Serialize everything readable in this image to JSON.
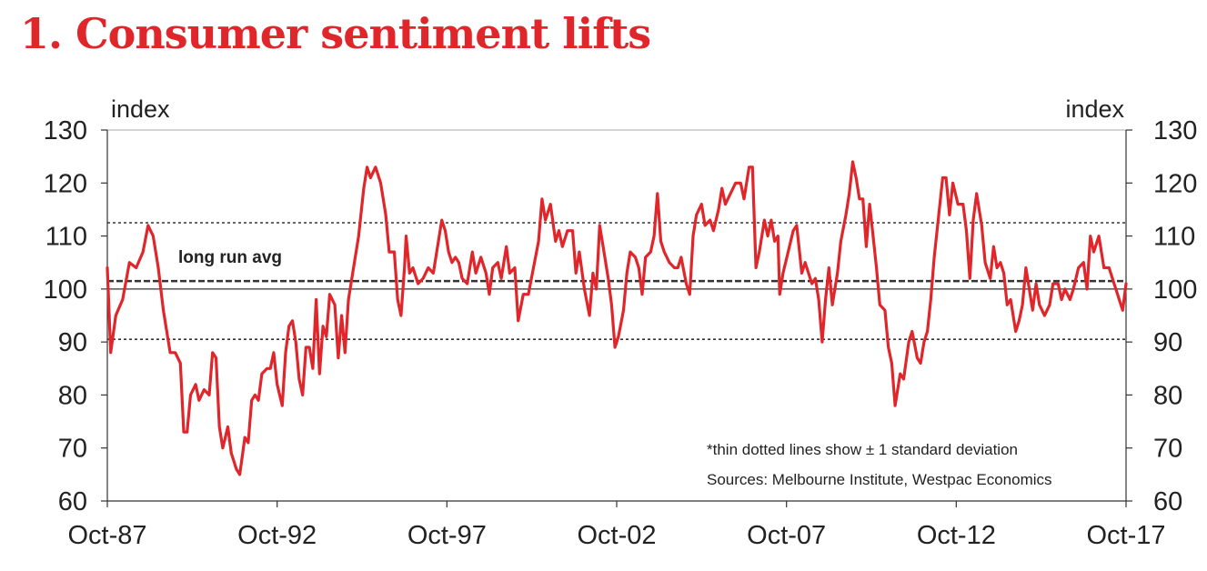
{
  "colors": {
    "title": "#e0262b",
    "series": "#e0262b",
    "axis": "#333333",
    "text": "#222222"
  },
  "chart_data": {
    "type": "line",
    "title": "1. Consumer sentiment lifts",
    "ylabel_left": "index",
    "ylabel_right": "index",
    "ylim": [
      60,
      130
    ],
    "yticks": [
      60,
      70,
      80,
      90,
      100,
      110,
      120,
      130
    ],
    "xlim": [
      1987.75,
      2017.75
    ],
    "xticks": [
      {
        "label": "Oct-87",
        "t": 1987.75
      },
      {
        "label": "Oct-92",
        "t": 1992.75
      },
      {
        "label": "Oct-97",
        "t": 1997.75
      },
      {
        "label": "Oct-02",
        "t": 2002.75
      },
      {
        "label": "Oct-07",
        "t": 2007.75
      },
      {
        "label": "Oct-12",
        "t": 2012.75
      },
      {
        "label": "Oct-17",
        "t": 2017.75
      }
    ],
    "reference_lines": [
      {
        "name": "long run avg",
        "value": 101.5,
        "style": "dashed-thick"
      },
      {
        "name": "+1 standard deviation",
        "value": 112.5,
        "style": "dotted"
      },
      {
        "name": "-1 standard deviation",
        "value": 90.5,
        "style": "dotted"
      },
      {
        "name": "100",
        "value": 100,
        "style": "solid-thin"
      }
    ],
    "annotations": {
      "long_run_avg_label": "long run avg",
      "note_sd": "*thin dotted lines show ± 1 standard deviation",
      "sources": "Sources: Melbourne Institute, Westpac Economics"
    },
    "series": [
      {
        "name": "Consumer sentiment index",
        "points": [
          [
            1987.75,
            104
          ],
          [
            1987.85,
            88
          ],
          [
            1988.0,
            95
          ],
          [
            1988.2,
            98
          ],
          [
            1988.4,
            105
          ],
          [
            1988.6,
            104
          ],
          [
            1988.8,
            107
          ],
          [
            1988.95,
            112
          ],
          [
            1989.1,
            110
          ],
          [
            1989.25,
            104
          ],
          [
            1989.4,
            96
          ],
          [
            1989.6,
            88
          ],
          [
            1989.75,
            88
          ],
          [
            1989.9,
            86
          ],
          [
            1990.0,
            73
          ],
          [
            1990.1,
            73
          ],
          [
            1990.2,
            80
          ],
          [
            1990.35,
            82
          ],
          [
            1990.45,
            79
          ],
          [
            1990.6,
            81
          ],
          [
            1990.75,
            80
          ],
          [
            1990.85,
            88
          ],
          [
            1990.95,
            87
          ],
          [
            1991.05,
            74
          ],
          [
            1991.15,
            70
          ],
          [
            1991.3,
            74
          ],
          [
            1991.4,
            69
          ],
          [
            1991.55,
            66
          ],
          [
            1991.65,
            65
          ],
          [
            1991.8,
            72
          ],
          [
            1991.9,
            71
          ],
          [
            1992.0,
            79
          ],
          [
            1992.1,
            80
          ],
          [
            1992.2,
            79
          ],
          [
            1992.3,
            84
          ],
          [
            1992.45,
            85
          ],
          [
            1992.55,
            85
          ],
          [
            1992.65,
            88
          ],
          [
            1992.75,
            82
          ],
          [
            1992.9,
            78
          ],
          [
            1993.0,
            88
          ],
          [
            1993.1,
            93
          ],
          [
            1993.2,
            94
          ],
          [
            1993.3,
            90
          ],
          [
            1993.4,
            83
          ],
          [
            1993.5,
            80
          ],
          [
            1993.6,
            89
          ],
          [
            1993.7,
            89
          ],
          [
            1993.8,
            85
          ],
          [
            1993.9,
            98
          ],
          [
            1994.0,
            84
          ],
          [
            1994.1,
            93
          ],
          [
            1994.2,
            91
          ],
          [
            1994.3,
            99
          ],
          [
            1994.45,
            97
          ],
          [
            1994.55,
            87
          ],
          [
            1994.65,
            95
          ],
          [
            1994.75,
            88
          ],
          [
            1994.85,
            98
          ],
          [
            1995.0,
            104
          ],
          [
            1995.15,
            110
          ],
          [
            1995.3,
            119
          ],
          [
            1995.4,
            123
          ],
          [
            1995.5,
            121
          ],
          [
            1995.65,
            123
          ],
          [
            1995.8,
            120
          ],
          [
            1995.95,
            114
          ],
          [
            1996.05,
            107
          ],
          [
            1996.2,
            107
          ],
          [
            1996.3,
            98
          ],
          [
            1996.4,
            95
          ],
          [
            1996.5,
            104
          ],
          [
            1996.55,
            110
          ],
          [
            1996.65,
            103
          ],
          [
            1996.75,
            104
          ],
          [
            1996.9,
            101
          ],
          [
            1997.05,
            102
          ],
          [
            1997.2,
            104
          ],
          [
            1997.35,
            103
          ],
          [
            1997.5,
            109
          ],
          [
            1997.6,
            113
          ],
          [
            1997.7,
            111
          ],
          [
            1997.8,
            107
          ],
          [
            1997.9,
            105
          ],
          [
            1998.0,
            106
          ],
          [
            1998.1,
            105
          ],
          [
            1998.2,
            102
          ],
          [
            1998.35,
            101
          ],
          [
            1998.5,
            107
          ],
          [
            1998.6,
            103
          ],
          [
            1998.75,
            106
          ],
          [
            1998.9,
            103
          ],
          [
            1999.0,
            99
          ],
          [
            1999.1,
            104
          ],
          [
            1999.25,
            105
          ],
          [
            1999.35,
            102
          ],
          [
            1999.5,
            108
          ],
          [
            1999.6,
            103
          ],
          [
            1999.75,
            104
          ],
          [
            1999.85,
            94
          ],
          [
            2000.0,
            99
          ],
          [
            2000.15,
            99
          ],
          [
            2000.3,
            104
          ],
          [
            2000.45,
            109
          ],
          [
            2000.55,
            117
          ],
          [
            2000.65,
            113
          ],
          [
            2000.8,
            116
          ],
          [
            2000.95,
            109
          ],
          [
            2001.05,
            111
          ],
          [
            2001.15,
            108
          ],
          [
            2001.3,
            111
          ],
          [
            2001.45,
            111
          ],
          [
            2001.55,
            103
          ],
          [
            2001.65,
            107
          ],
          [
            2001.8,
            100
          ],
          [
            2001.95,
            95
          ],
          [
            2002.05,
            103
          ],
          [
            2002.15,
            100
          ],
          [
            2002.25,
            112
          ],
          [
            2002.35,
            108
          ],
          [
            2002.5,
            102
          ],
          [
            2002.6,
            97
          ],
          [
            2002.7,
            89
          ],
          [
            2002.8,
            91
          ],
          [
            2002.95,
            96
          ],
          [
            2003.05,
            103
          ],
          [
            2003.15,
            107
          ],
          [
            2003.3,
            106
          ],
          [
            2003.4,
            104
          ],
          [
            2003.5,
            99
          ],
          [
            2003.6,
            106
          ],
          [
            2003.75,
            107
          ],
          [
            2003.85,
            110
          ],
          [
            2003.95,
            118
          ],
          [
            2004.05,
            109
          ],
          [
            2004.15,
            107
          ],
          [
            2004.3,
            105
          ],
          [
            2004.45,
            104
          ],
          [
            2004.55,
            104
          ],
          [
            2004.65,
            106
          ],
          [
            2004.8,
            101
          ],
          [
            2004.9,
            99
          ],
          [
            2005.0,
            110
          ],
          [
            2005.1,
            114
          ],
          [
            2005.25,
            116
          ],
          [
            2005.35,
            112
          ],
          [
            2005.5,
            113
          ],
          [
            2005.6,
            111
          ],
          [
            2005.75,
            115
          ],
          [
            2005.85,
            119
          ],
          [
            2005.95,
            116
          ],
          [
            2006.1,
            118
          ],
          [
            2006.25,
            120
          ],
          [
            2006.4,
            120
          ],
          [
            2006.5,
            117
          ],
          [
            2006.65,
            123
          ],
          [
            2006.75,
            123
          ],
          [
            2006.85,
            104
          ],
          [
            2006.95,
            107
          ],
          [
            2007.1,
            113
          ],
          [
            2007.2,
            110
          ],
          [
            2007.3,
            113
          ],
          [
            2007.4,
            109
          ],
          [
            2007.5,
            110
          ],
          [
            2007.55,
            99
          ],
          [
            2007.65,
            103
          ],
          [
            2007.8,
            107
          ],
          [
            2007.95,
            111
          ],
          [
            2008.05,
            112
          ],
          [
            2008.2,
            103
          ],
          [
            2008.3,
            105
          ],
          [
            2008.4,
            103
          ],
          [
            2008.5,
            101
          ],
          [
            2008.6,
            102
          ],
          [
            2008.7,
            98
          ],
          [
            2008.8,
            90
          ],
          [
            2008.9,
            98
          ],
          [
            2009.0,
            104
          ],
          [
            2009.1,
            97
          ],
          [
            2009.25,
            103
          ],
          [
            2009.35,
            109
          ],
          [
            2009.5,
            114
          ],
          [
            2009.6,
            118
          ],
          [
            2009.7,
            124
          ],
          [
            2009.8,
            121
          ],
          [
            2009.9,
            117
          ],
          [
            2010.0,
            117
          ],
          [
            2010.1,
            108
          ],
          [
            2010.2,
            116
          ],
          [
            2010.3,
            110
          ],
          [
            2010.4,
            104
          ],
          [
            2010.5,
            97
          ],
          [
            2010.65,
            96
          ],
          [
            2010.75,
            89
          ],
          [
            2010.85,
            86
          ],
          [
            2010.95,
            78
          ],
          [
            2011.1,
            84
          ],
          [
            2011.2,
            83
          ],
          [
            2011.35,
            90
          ],
          [
            2011.45,
            92
          ],
          [
            2011.6,
            87
          ],
          [
            2011.7,
            86
          ],
          [
            2011.8,
            90
          ],
          [
            2011.9,
            92
          ],
          [
            2012.0,
            98
          ],
          [
            2012.1,
            106
          ],
          [
            2012.25,
            115
          ],
          [
            2012.35,
            121
          ],
          [
            2012.45,
            121
          ],
          [
            2012.55,
            114
          ],
          [
            2012.65,
            120
          ],
          [
            2012.8,
            116
          ],
          [
            2012.95,
            116
          ],
          [
            2013.05,
            111
          ],
          [
            2013.15,
            102
          ],
          [
            2013.25,
            113
          ],
          [
            2013.35,
            118
          ],
          [
            2013.5,
            112
          ],
          [
            2013.6,
            105
          ],
          [
            2013.75,
            102
          ],
          [
            2013.85,
            108
          ],
          [
            2013.95,
            104
          ],
          [
            2014.05,
            105
          ],
          [
            2014.15,
            103
          ],
          [
            2014.25,
            97
          ],
          [
            2014.35,
            98
          ],
          [
            2014.5,
            92
          ],
          [
            2014.6,
            94
          ],
          [
            2014.7,
            97
          ],
          [
            2014.8,
            104
          ],
          [
            2014.9,
            100
          ],
          [
            2015.0,
            96
          ],
          [
            2015.1,
            101
          ],
          [
            2015.2,
            97
          ],
          [
            2015.35,
            95
          ],
          [
            2015.5,
            97
          ],
          [
            2015.6,
            101
          ],
          [
            2015.75,
            101
          ],
          [
            2015.85,
            98
          ],
          [
            2015.95,
            100
          ],
          [
            2016.1,
            98
          ],
          [
            2016.2,
            100
          ],
          [
            2016.35,
            104
          ],
          [
            2016.5,
            105
          ],
          [
            2016.6,
            100
          ],
          [
            2016.7,
            110
          ],
          [
            2016.8,
            107
          ],
          [
            2016.95,
            110
          ],
          [
            2017.1,
            104
          ],
          [
            2017.25,
            104
          ],
          [
            2017.4,
            101
          ],
          [
            2017.5,
            99
          ],
          [
            2017.55,
            98
          ],
          [
            2017.65,
            96
          ],
          [
            2017.75,
            101
          ]
        ]
      }
    ]
  }
}
